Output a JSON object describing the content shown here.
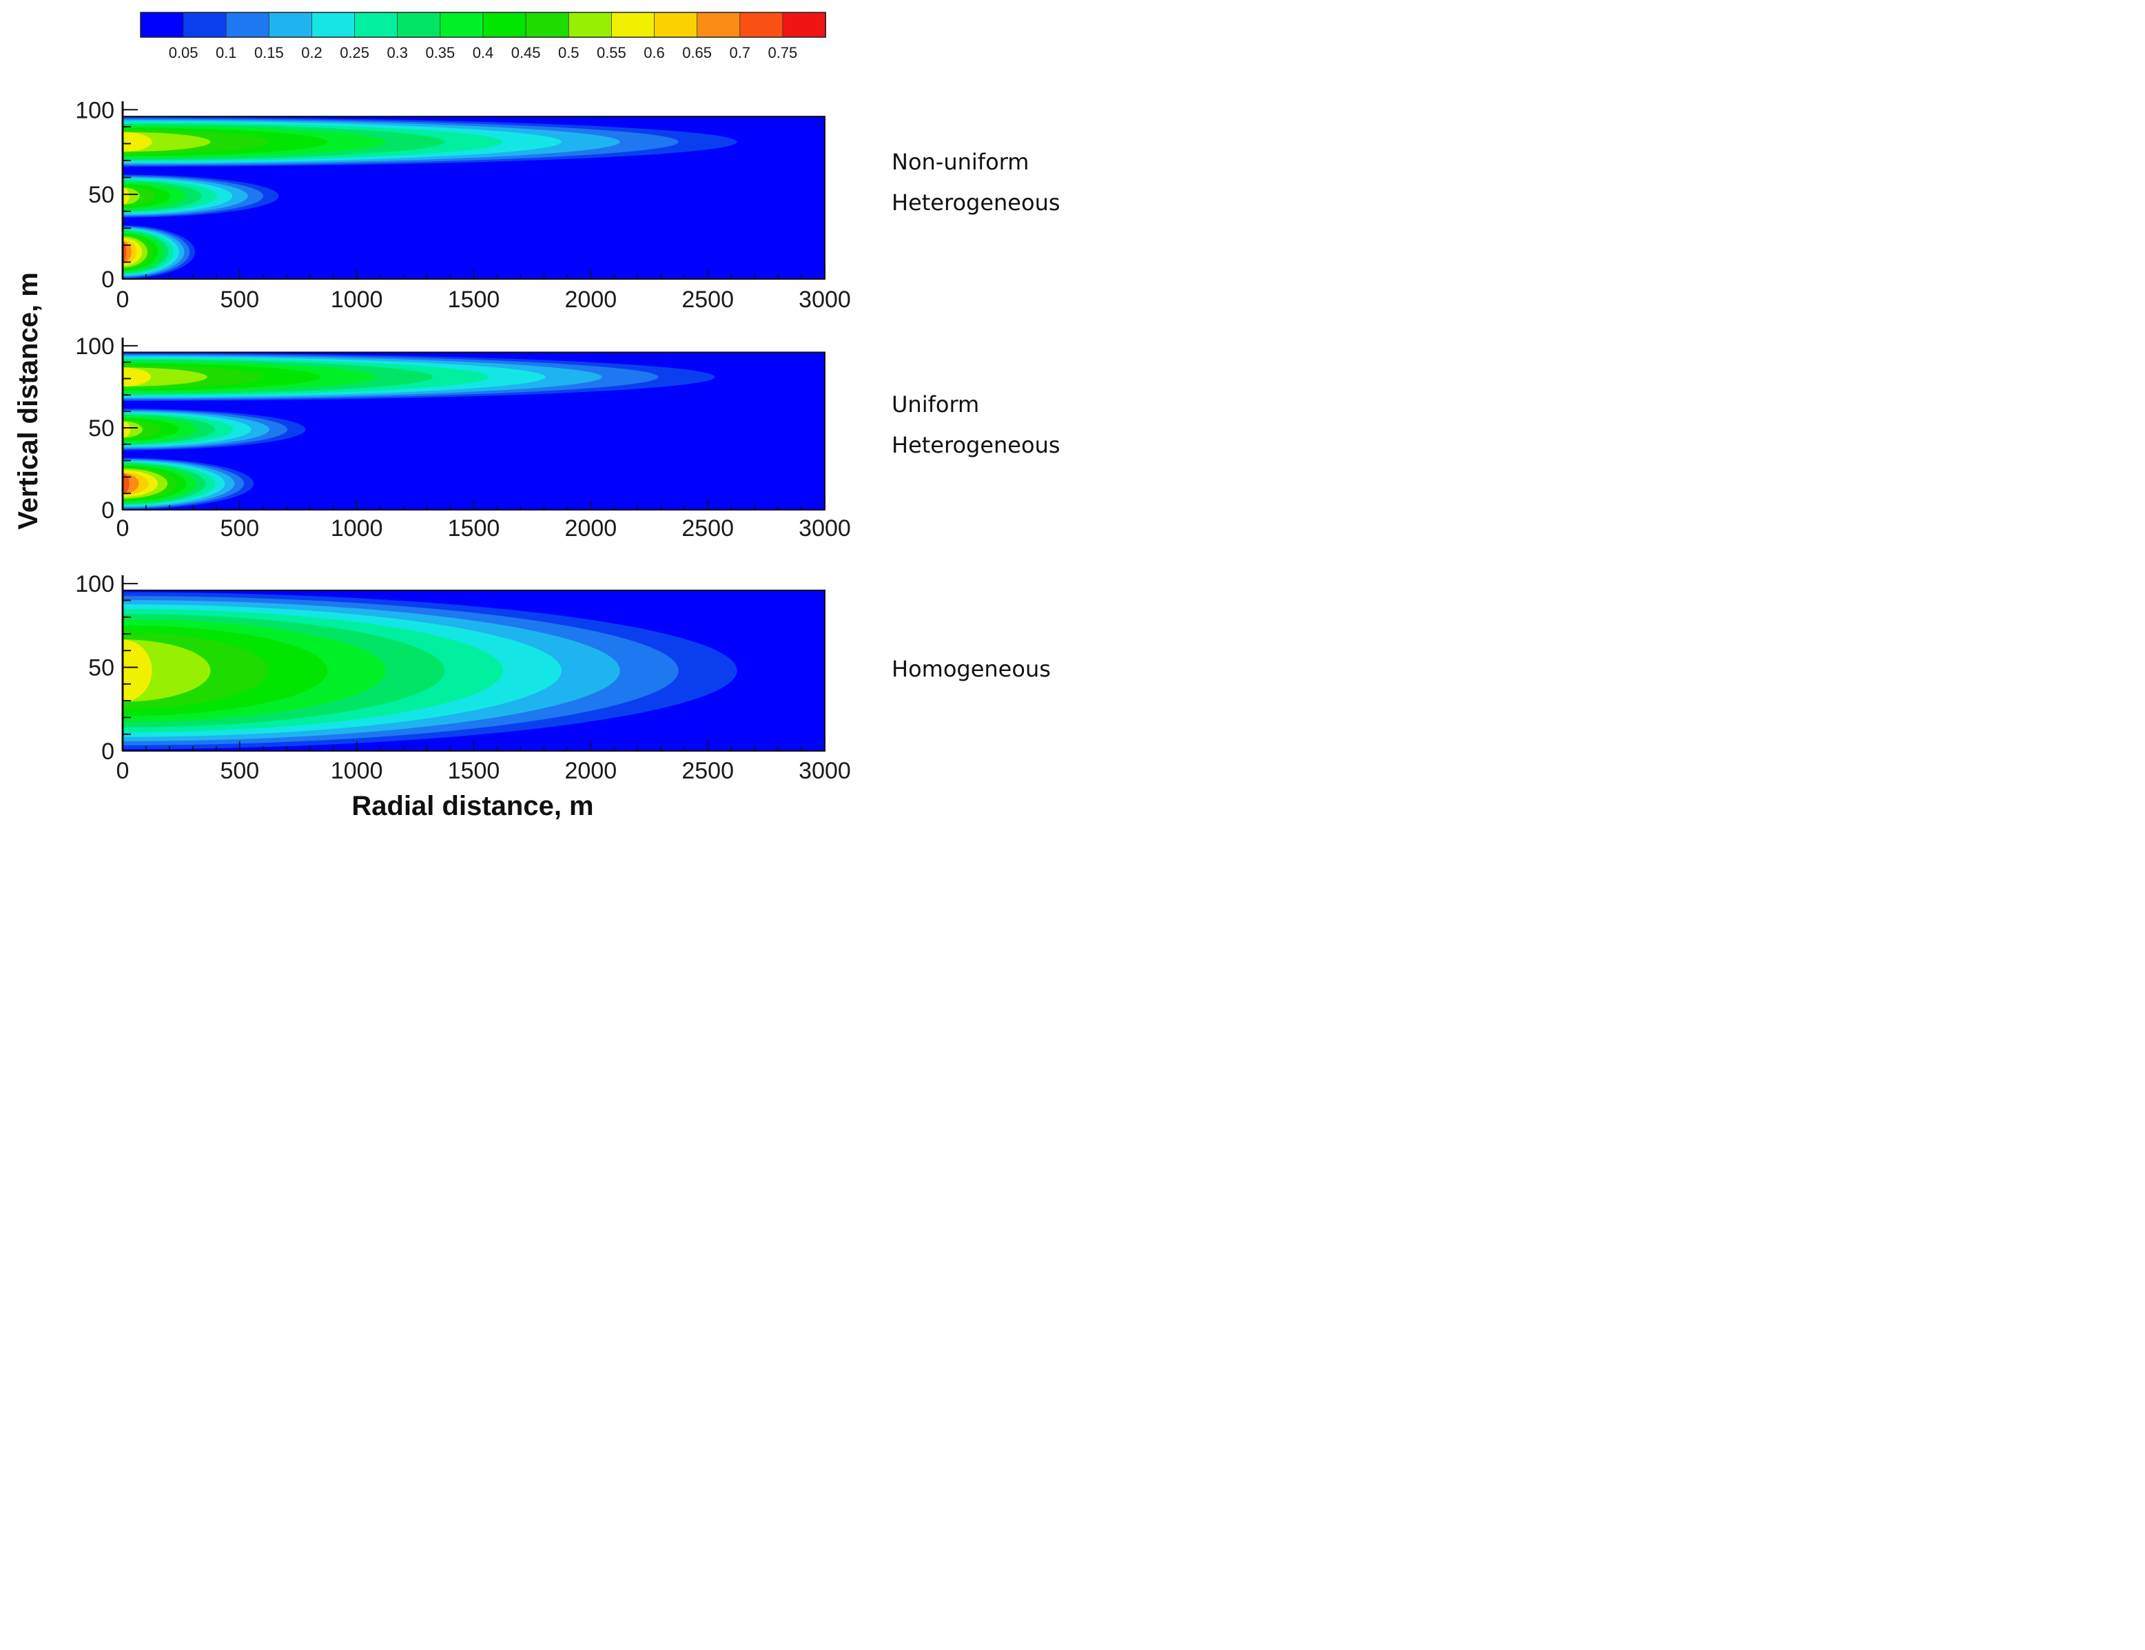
{
  "chart_data": [
    {
      "type": "heatmap",
      "variable": "contour",
      "colorbar": {
        "ticks": [
          "0.05",
          "0.1",
          "0.15",
          "0.2",
          "0.25",
          "0.3",
          "0.35",
          "0.4",
          "0.45",
          "0.5",
          "0.55",
          "0.6",
          "0.65",
          "0.7",
          "0.75"
        ],
        "colors": [
          "#0000ff",
          "#0a3ff0",
          "#1e78f0",
          "#1eb4f0",
          "#14e6e6",
          "#00f0a0",
          "#00e664",
          "#00f028",
          "#00e600",
          "#1edc00",
          "#96f000",
          "#f0f000",
          "#fad200",
          "#fa8c14",
          "#fa5014",
          "#f01414"
        ],
        "range": [
          0,
          0.8
        ],
        "placement": "top"
      },
      "shared_axes": {
        "xlabel": "Radial distance, m",
        "ylabel": "Vertical distance, m",
        "xlim": [
          0,
          3000
        ],
        "ylim": [
          0,
          105
        ],
        "domain_top": 96,
        "xticks": [
          "0",
          "500",
          "1000",
          "1500",
          "2000",
          "2500",
          "3000"
        ],
        "yticks": [
          "0",
          "50",
          "100"
        ],
        "grid": false
      },
      "panels": [
        {
          "label_line1": "Non-uniform",
          "label_line2": "Heterogeneous",
          "layers": [
            {
              "y": [
                0,
                32
              ],
              "peak": 0.76,
              "reach": 320
            },
            {
              "y": [
                36,
                62
              ],
              "peak": 0.58,
              "reach": 700
            },
            {
              "y": [
                66,
                96
              ],
              "peak": 0.6,
              "reach": 2750
            }
          ]
        },
        {
          "label_line1": "Uniform",
          "label_line2": "Heterogeneous",
          "layers": [
            {
              "y": [
                0,
                32
              ],
              "peak": 0.76,
              "reach": 580
            },
            {
              "y": [
                36,
                62
              ],
              "peak": 0.58,
              "reach": 820
            },
            {
              "y": [
                66,
                96
              ],
              "peak": 0.6,
              "reach": 2650
            }
          ]
        },
        {
          "label_line1": "Homogeneous",
          "label_line2": "",
          "layers": [
            {
              "y": [
                0,
                96
              ],
              "peak": 0.6,
              "reach": 2750
            }
          ]
        }
      ]
    }
  ]
}
